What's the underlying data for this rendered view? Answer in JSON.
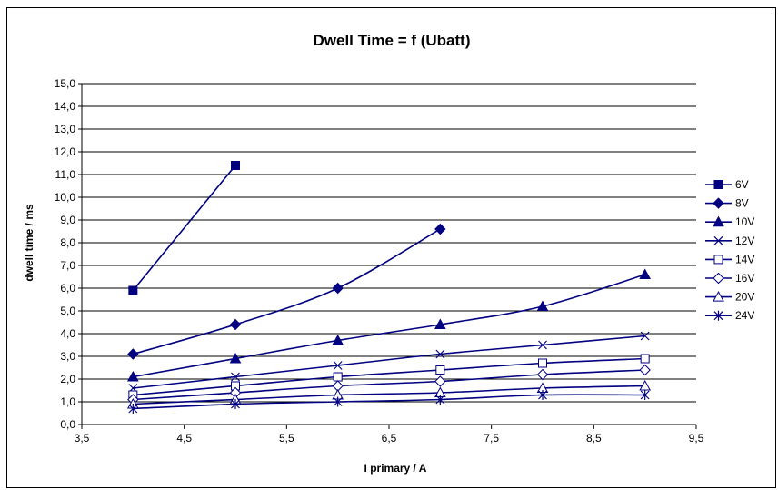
{
  "chart_data": {
    "type": "line",
    "title": "Dwell Time = f (Ubatt)",
    "xlabel": "I primary / A",
    "ylabel": "dwell time / ms",
    "xlim": [
      3.5,
      9.5
    ],
    "ylim": [
      0.0,
      15.0
    ],
    "x_ticks": [
      "3,5",
      "4,5",
      "5,5",
      "6,5",
      "7,5",
      "8,5",
      "9,5"
    ],
    "y_ticks": [
      "0,0",
      "1,0",
      "2,0",
      "3,0",
      "4,0",
      "5,0",
      "6,0",
      "7,0",
      "8,0",
      "9,0",
      "10,0",
      "11,0",
      "12,0",
      "13,0",
      "14,0",
      "15,0"
    ],
    "grid": "horizontal",
    "legend_position": "right",
    "color": "#000080",
    "series": [
      {
        "name": "6V",
        "marker": "filled-square",
        "x": [
          4,
          5
        ],
        "y": [
          5.9,
          11.4
        ]
      },
      {
        "name": "8V",
        "marker": "filled-diamond",
        "x": [
          4,
          5,
          6,
          7
        ],
        "y": [
          3.1,
          4.4,
          6.0,
          8.6
        ]
      },
      {
        "name": "10V",
        "marker": "filled-triangle",
        "x": [
          4,
          5,
          6,
          7,
          8,
          9
        ],
        "y": [
          2.1,
          2.9,
          3.7,
          4.4,
          5.2,
          6.6
        ]
      },
      {
        "name": "12V",
        "marker": "x",
        "x": [
          4,
          5,
          6,
          7,
          8,
          9
        ],
        "y": [
          1.6,
          2.1,
          2.6,
          3.1,
          3.5,
          3.9
        ]
      },
      {
        "name": "14V",
        "marker": "open-square",
        "x": [
          4,
          5,
          6,
          7,
          8,
          9
        ],
        "y": [
          1.3,
          1.7,
          2.1,
          2.4,
          2.7,
          2.9
        ]
      },
      {
        "name": "16V",
        "marker": "open-diamond",
        "x": [
          4,
          5,
          6,
          7,
          8,
          9
        ],
        "y": [
          1.1,
          1.4,
          1.7,
          1.9,
          2.2,
          2.4
        ]
      },
      {
        "name": "20V",
        "marker": "open-triangle",
        "x": [
          4,
          5,
          6,
          7,
          8,
          9
        ],
        "y": [
          0.9,
          1.1,
          1.3,
          1.4,
          1.6,
          1.7
        ]
      },
      {
        "name": "24V",
        "marker": "star",
        "x": [
          4,
          5,
          6,
          7,
          8,
          9
        ],
        "y": [
          0.7,
          0.9,
          1.0,
          1.1,
          1.3,
          1.3
        ]
      }
    ]
  }
}
